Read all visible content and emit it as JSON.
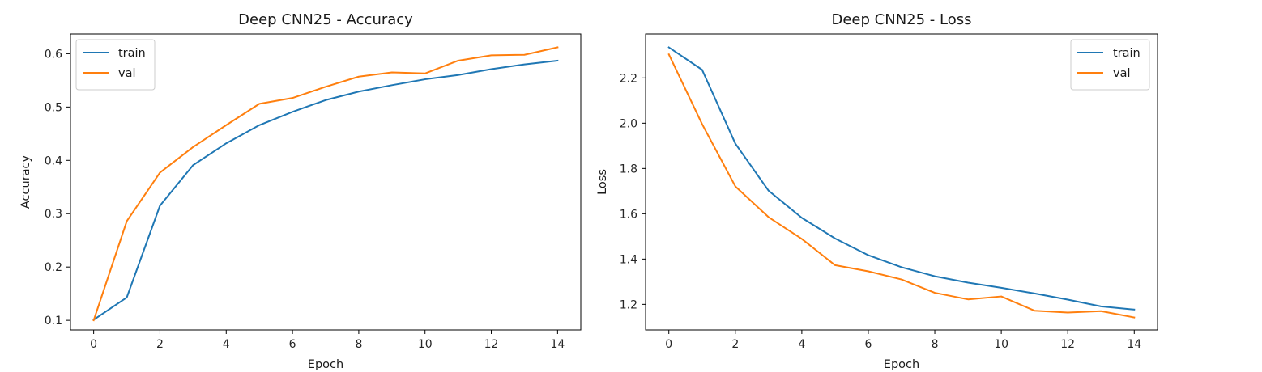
{
  "chart_data": [
    {
      "type": "line",
      "title": "Deep CNN25 - Accuracy",
      "xlabel": "Epoch",
      "ylabel": "Accuracy",
      "xlim": [
        -0.7,
        14.7
      ],
      "ylim": [
        0.082,
        0.637
      ],
      "xticks": [
        0,
        2,
        4,
        6,
        8,
        10,
        12,
        14
      ],
      "yticks": [
        0.1,
        0.2,
        0.3,
        0.4,
        0.5,
        0.6
      ],
      "legend_position": "upper-left",
      "x": [
        0,
        1,
        2,
        3,
        4,
        5,
        6,
        7,
        8,
        9,
        10,
        11,
        12,
        13,
        14
      ],
      "series": [
        {
          "name": "train",
          "color": "#1f77b4",
          "values": [
            0.101,
            0.143,
            0.315,
            0.391,
            0.432,
            0.466,
            0.491,
            0.513,
            0.529,
            0.541,
            0.552,
            0.56,
            0.571,
            0.58,
            0.587
          ]
        },
        {
          "name": "val",
          "color": "#ff7f0e",
          "values": [
            0.1,
            0.286,
            0.377,
            0.425,
            0.466,
            0.506,
            0.517,
            0.538,
            0.557,
            0.565,
            0.563,
            0.587,
            0.597,
            0.598,
            0.612
          ]
        }
      ]
    },
    {
      "type": "line",
      "title": "Deep CNN25 - Loss",
      "xlabel": "Epoch",
      "ylabel": "Loss",
      "xlim": [
        -0.7,
        14.7
      ],
      "ylim": [
        1.087,
        2.394
      ],
      "xticks": [
        0,
        2,
        4,
        6,
        8,
        10,
        12,
        14
      ],
      "yticks": [
        1.2,
        1.4,
        1.6,
        1.8,
        2.0,
        2.2
      ],
      "legend_position": "upper-right",
      "x": [
        0,
        1,
        2,
        3,
        4,
        5,
        6,
        7,
        8,
        9,
        10,
        11,
        12,
        13,
        14
      ],
      "series": [
        {
          "name": "train",
          "color": "#1f77b4",
          "values": [
            2.335,
            2.236,
            1.91,
            1.702,
            1.582,
            1.491,
            1.417,
            1.364,
            1.324,
            1.296,
            1.273,
            1.248,
            1.221,
            1.191,
            1.177
          ]
        },
        {
          "name": "val",
          "color": "#ff7f0e",
          "values": [
            2.304,
            1.996,
            1.721,
            1.585,
            1.489,
            1.373,
            1.346,
            1.31,
            1.251,
            1.222,
            1.235,
            1.172,
            1.164,
            1.17,
            1.142
          ]
        }
      ]
    }
  ]
}
